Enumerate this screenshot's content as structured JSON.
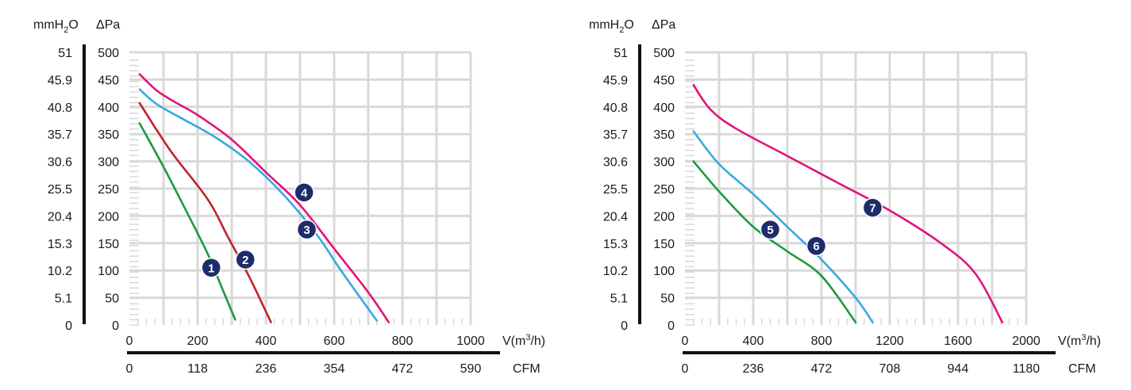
{
  "chart_data": [
    {
      "type": "line",
      "ylabel_left": "mmH2O",
      "ylabel_right": "ΔPa",
      "xlabel_top": "V(m³/h)",
      "xlabel_bottom": "CFM",
      "xlim": [
        0,
        1000
      ],
      "ylim": [
        0,
        500
      ],
      "y_ticks_pa": [
        "0",
        "50",
        "100",
        "150",
        "200",
        "250",
        "300",
        "350",
        "400",
        "450",
        "500"
      ],
      "y_ticks_mmh2o": [
        "0",
        "5.1",
        "10.2",
        "15.3",
        "20.4",
        "25.5",
        "30.6",
        "35.7",
        "40.8",
        "45.9",
        "51"
      ],
      "x_ticks_m3h": [
        "0",
        "200",
        "400",
        "600",
        "800",
        "1000"
      ],
      "x_ticks_cfm": [
        "0",
        "118",
        "236",
        "354",
        "472",
        "590"
      ],
      "grid": true,
      "series": [
        {
          "name": "1",
          "color": "#1e9a3c",
          "x": [
            30,
            100,
            170,
            230,
            270,
            310
          ],
          "y": [
            370,
            290,
            205,
            130,
            70,
            10
          ]
        },
        {
          "name": "2",
          "color": "#c0232b",
          "x": [
            30,
            120,
            230,
            290,
            350,
            415
          ],
          "y": [
            407,
            320,
            230,
            160,
            90,
            5
          ]
        },
        {
          "name": "3",
          "color": "#38a9e0",
          "x": [
            30,
            80,
            150,
            250,
            350,
            450,
            550,
            620,
            725
          ],
          "y": [
            432,
            405,
            380,
            345,
            300,
            240,
            165,
            100,
            8
          ]
        },
        {
          "name": "4",
          "color": "#e2137a",
          "x": [
            30,
            80,
            130,
            200,
            300,
            400,
            500,
            600,
            700,
            760
          ],
          "y": [
            460,
            430,
            410,
            385,
            340,
            280,
            220,
            140,
            60,
            5
          ]
        }
      ],
      "badges": [
        {
          "label": "1",
          "x": 240,
          "y": 105
        },
        {
          "label": "2",
          "x": 340,
          "y": 120
        },
        {
          "label": "3",
          "x": 520,
          "y": 175
        },
        {
          "label": "4",
          "x": 512,
          "y": 243
        }
      ]
    },
    {
      "type": "line",
      "ylabel_left": "mmH2O",
      "ylabel_right": "ΔPa",
      "xlabel_top": "V(m³/h)",
      "xlabel_bottom": "CFM",
      "xlim": [
        0,
        2000
      ],
      "ylim": [
        0,
        500
      ],
      "y_ticks_pa": [
        "0",
        "50",
        "100",
        "150",
        "200",
        "250",
        "300",
        "350",
        "400",
        "450",
        "500"
      ],
      "y_ticks_mmh2o": [
        "0",
        "5.1",
        "10.2",
        "15.3",
        "20.4",
        "25.5",
        "30.6",
        "35.7",
        "40.8",
        "45.9",
        "51"
      ],
      "x_ticks_m3h": [
        "0",
        "400",
        "800",
        "1200",
        "1600",
        "2000"
      ],
      "x_ticks_cfm": [
        "0",
        "236",
        "472",
        "708",
        "944",
        "1180"
      ],
      "grid": true,
      "series": [
        {
          "name": "5",
          "color": "#1e9a3c",
          "x": [
            50,
            200,
            400,
            600,
            800,
            1000
          ],
          "y": [
            300,
            245,
            180,
            135,
            90,
            5
          ]
        },
        {
          "name": "6",
          "color": "#38a9e0",
          "x": [
            50,
            200,
            400,
            600,
            800,
            1000,
            1100
          ],
          "y": [
            355,
            295,
            240,
            180,
            120,
            50,
            5
          ]
        },
        {
          "name": "7",
          "color": "#e2137a",
          "x": [
            50,
            150,
            300,
            600,
            900,
            1200,
            1500,
            1700,
            1860
          ],
          "y": [
            440,
            395,
            360,
            310,
            260,
            210,
            150,
            95,
            5
          ]
        }
      ],
      "badges": [
        {
          "label": "5",
          "x": 500,
          "y": 175
        },
        {
          "label": "6",
          "x": 770,
          "y": 145
        },
        {
          "label": "7",
          "x": 1100,
          "y": 215
        }
      ]
    }
  ]
}
